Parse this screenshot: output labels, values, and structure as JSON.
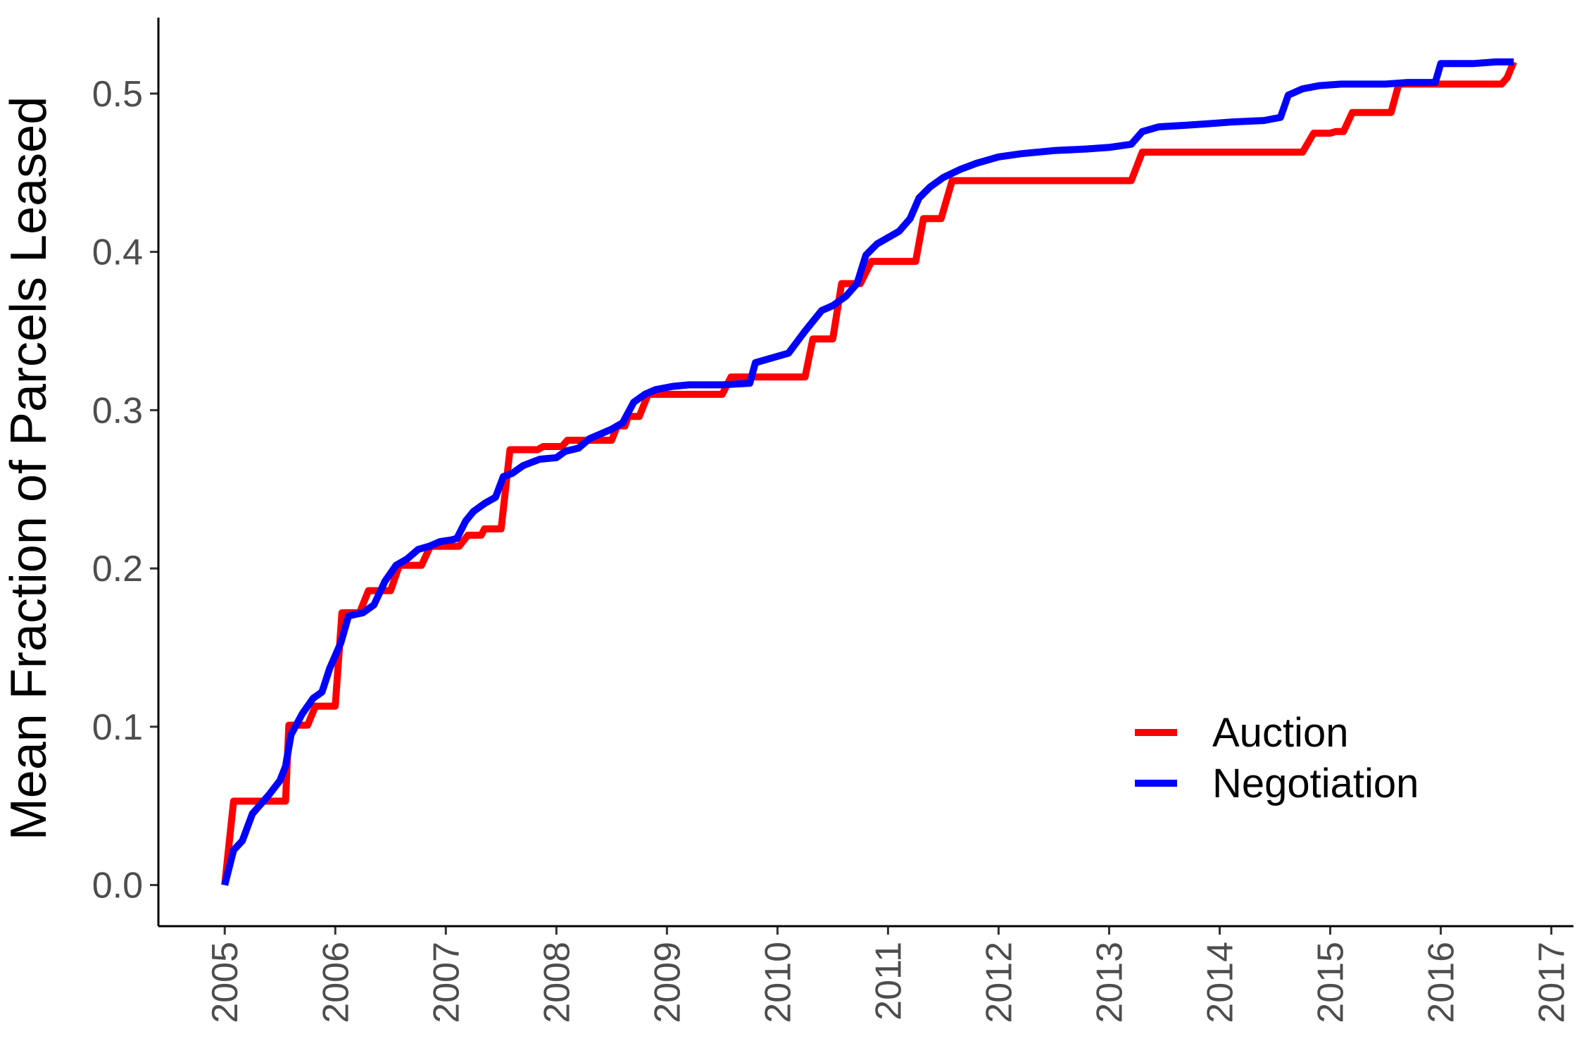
{
  "chart_data": {
    "type": "line",
    "title": "",
    "xlabel": "",
    "ylabel": "Mean Fraction of Parcels Leased",
    "xlim": [
      2004.4,
      2017.2
    ],
    "ylim": [
      -0.026,
      0.548
    ],
    "x_ticks": [
      2005,
      2006,
      2007,
      2008,
      2009,
      2010,
      2011,
      2012,
      2013,
      2014,
      2015,
      2016,
      2017
    ],
    "x_tick_labels": [
      "2005",
      "2006",
      "2007",
      "2008",
      "2009",
      "2010",
      "2011",
      "2012",
      "2013",
      "2014",
      "2015",
      "2016",
      "2017"
    ],
    "y_ticks": [
      0,
      0.1,
      0.2,
      0.3,
      0.4,
      0.5
    ],
    "y_tick_labels": [
      "0.0",
      "0.1",
      "0.2",
      "0.3",
      "0.4",
      "0.5"
    ],
    "grid": false,
    "legend_position": "bottom-right",
    "series": [
      {
        "name": "Auction",
        "color": "#ff0000",
        "step": true,
        "points": [
          [
            2005.0,
            0.0
          ],
          [
            2005.08,
            0.053
          ],
          [
            2005.55,
            0.053
          ],
          [
            2005.58,
            0.101
          ],
          [
            2005.75,
            0.101
          ],
          [
            2005.82,
            0.113
          ],
          [
            2006.0,
            0.113
          ],
          [
            2006.06,
            0.172
          ],
          [
            2006.22,
            0.172
          ],
          [
            2006.3,
            0.186
          ],
          [
            2006.5,
            0.186
          ],
          [
            2006.58,
            0.202
          ],
          [
            2006.78,
            0.202
          ],
          [
            2006.86,
            0.214
          ],
          [
            2007.12,
            0.214
          ],
          [
            2007.2,
            0.221
          ],
          [
            2007.32,
            0.221
          ],
          [
            2007.35,
            0.225
          ],
          [
            2007.5,
            0.225
          ],
          [
            2007.58,
            0.275
          ],
          [
            2007.83,
            0.275
          ],
          [
            2007.88,
            0.277
          ],
          [
            2008.05,
            0.277
          ],
          [
            2008.1,
            0.281
          ],
          [
            2008.5,
            0.281
          ],
          [
            2008.55,
            0.29
          ],
          [
            2008.62,
            0.29
          ],
          [
            2008.65,
            0.296
          ],
          [
            2008.75,
            0.296
          ],
          [
            2008.83,
            0.31
          ],
          [
            2009.5,
            0.31
          ],
          [
            2009.58,
            0.321
          ],
          [
            2010.25,
            0.321
          ],
          [
            2010.32,
            0.345
          ],
          [
            2010.5,
            0.345
          ],
          [
            2010.58,
            0.38
          ],
          [
            2010.75,
            0.38
          ],
          [
            2010.85,
            0.394
          ],
          [
            2011.25,
            0.394
          ],
          [
            2011.32,
            0.421
          ],
          [
            2011.48,
            0.421
          ],
          [
            2011.58,
            0.445
          ],
          [
            2013.2,
            0.445
          ],
          [
            2013.3,
            0.463
          ],
          [
            2014.75,
            0.463
          ],
          [
            2014.85,
            0.475
          ],
          [
            2015.0,
            0.475
          ],
          [
            2015.05,
            0.476
          ],
          [
            2015.12,
            0.476
          ],
          [
            2015.2,
            0.488
          ],
          [
            2015.55,
            0.488
          ],
          [
            2015.62,
            0.506
          ],
          [
            2016.55,
            0.506
          ],
          [
            2016.6,
            0.51
          ],
          [
            2016.66,
            0.52
          ]
        ]
      },
      {
        "name": "Negotiation",
        "color": "#0000ff",
        "step": false,
        "points": [
          [
            2005.0,
            0.0
          ],
          [
            2005.08,
            0.022
          ],
          [
            2005.16,
            0.028
          ],
          [
            2005.25,
            0.045
          ],
          [
            2005.4,
            0.057
          ],
          [
            2005.5,
            0.066
          ],
          [
            2005.55,
            0.075
          ],
          [
            2005.6,
            0.095
          ],
          [
            2005.7,
            0.108
          ],
          [
            2005.8,
            0.118
          ],
          [
            2005.88,
            0.122
          ],
          [
            2005.95,
            0.137
          ],
          [
            2006.05,
            0.153
          ],
          [
            2006.12,
            0.17
          ],
          [
            2006.25,
            0.172
          ],
          [
            2006.35,
            0.177
          ],
          [
            2006.45,
            0.192
          ],
          [
            2006.55,
            0.202
          ],
          [
            2006.65,
            0.206
          ],
          [
            2006.75,
            0.212
          ],
          [
            2006.85,
            0.214
          ],
          [
            2006.95,
            0.217
          ],
          [
            2007.05,
            0.218
          ],
          [
            2007.1,
            0.219
          ],
          [
            2007.18,
            0.23
          ],
          [
            2007.25,
            0.236
          ],
          [
            2007.35,
            0.241
          ],
          [
            2007.45,
            0.245
          ],
          [
            2007.52,
            0.258
          ],
          [
            2007.6,
            0.26
          ],
          [
            2007.7,
            0.265
          ],
          [
            2007.85,
            0.269
          ],
          [
            2008.0,
            0.27
          ],
          [
            2008.08,
            0.274
          ],
          [
            2008.2,
            0.276
          ],
          [
            2008.3,
            0.282
          ],
          [
            2008.4,
            0.285
          ],
          [
            2008.5,
            0.288
          ],
          [
            2008.6,
            0.292
          ],
          [
            2008.7,
            0.305
          ],
          [
            2008.8,
            0.31
          ],
          [
            2008.9,
            0.313
          ],
          [
            2009.05,
            0.315
          ],
          [
            2009.2,
            0.316
          ],
          [
            2009.5,
            0.316
          ],
          [
            2009.75,
            0.317
          ],
          [
            2009.8,
            0.33
          ],
          [
            2009.95,
            0.333
          ],
          [
            2010.1,
            0.336
          ],
          [
            2010.25,
            0.35
          ],
          [
            2010.4,
            0.363
          ],
          [
            2010.5,
            0.366
          ],
          [
            2010.62,
            0.372
          ],
          [
            2010.72,
            0.38
          ],
          [
            2010.8,
            0.398
          ],
          [
            2010.9,
            0.405
          ],
          [
            2011.0,
            0.409
          ],
          [
            2011.1,
            0.413
          ],
          [
            2011.2,
            0.421
          ],
          [
            2011.28,
            0.434
          ],
          [
            2011.38,
            0.441
          ],
          [
            2011.5,
            0.447
          ],
          [
            2011.65,
            0.452
          ],
          [
            2011.8,
            0.456
          ],
          [
            2012.0,
            0.46
          ],
          [
            2012.2,
            0.462
          ],
          [
            2012.5,
            0.464
          ],
          [
            2012.8,
            0.465
          ],
          [
            2013.0,
            0.466
          ],
          [
            2013.2,
            0.468
          ],
          [
            2013.3,
            0.476
          ],
          [
            2013.45,
            0.479
          ],
          [
            2013.7,
            0.48
          ],
          [
            2013.9,
            0.481
          ],
          [
            2014.1,
            0.482
          ],
          [
            2014.4,
            0.483
          ],
          [
            2014.55,
            0.485
          ],
          [
            2014.62,
            0.499
          ],
          [
            2014.75,
            0.503
          ],
          [
            2014.9,
            0.505
          ],
          [
            2015.1,
            0.506
          ],
          [
            2015.5,
            0.506
          ],
          [
            2015.7,
            0.507
          ],
          [
            2015.95,
            0.507
          ],
          [
            2016.0,
            0.519
          ],
          [
            2016.3,
            0.519
          ],
          [
            2016.5,
            0.52
          ],
          [
            2016.66,
            0.52
          ]
        ]
      }
    ]
  }
}
